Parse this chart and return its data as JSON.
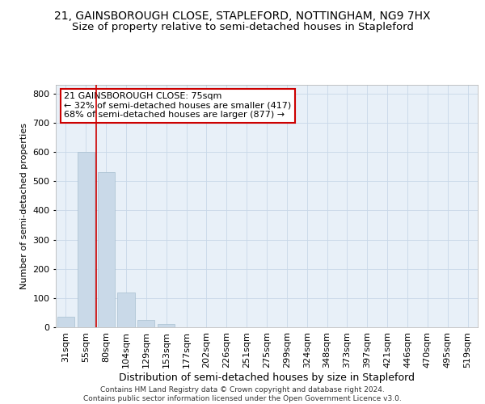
{
  "title": "21, GAINSBOROUGH CLOSE, STAPLEFORD, NOTTINGHAM, NG9 7HX",
  "subtitle": "Size of property relative to semi-detached houses in Stapleford",
  "xlabel": "Distribution of semi-detached houses by size in Stapleford",
  "ylabel": "Number of semi-detached properties",
  "footer_line1": "Contains HM Land Registry data © Crown copyright and database right 2024.",
  "footer_line2": "Contains public sector information licensed under the Open Government Licence v3.0.",
  "categories": [
    "31sqm",
    "55sqm",
    "80sqm",
    "104sqm",
    "129sqm",
    "153sqm",
    "177sqm",
    "202sqm",
    "226sqm",
    "251sqm",
    "275sqm",
    "299sqm",
    "324sqm",
    "348sqm",
    "373sqm",
    "397sqm",
    "421sqm",
    "446sqm",
    "470sqm",
    "495sqm",
    "519sqm"
  ],
  "values": [
    35,
    600,
    530,
    120,
    25,
    10,
    0,
    0,
    0,
    0,
    0,
    0,
    0,
    0,
    0,
    0,
    0,
    0,
    0,
    0,
    0
  ],
  "bar_color": "#c9d9e8",
  "bar_edge_color": "#a8c0d0",
  "vline_x": 1.5,
  "vline_color": "#cc0000",
  "vline_label": "21 GAINSBOROUGH CLOSE: 75sqm",
  "annotation_smaller": "← 32% of semi-detached houses are smaller (417)",
  "annotation_larger": "68% of semi-detached houses are larger (877) →",
  "annotation_box_color": "#ffffff",
  "annotation_box_edge": "#cc0000",
  "ylim": [
    0,
    830
  ],
  "yticks": [
    0,
    100,
    200,
    300,
    400,
    500,
    600,
    700,
    800
  ],
  "grid_color": "#c8d8e8",
  "bg_color": "#e8f0f8",
  "title_fontsize": 10,
  "subtitle_fontsize": 9.5,
  "xlabel_fontsize": 9,
  "ylabel_fontsize": 8,
  "tick_fontsize": 8,
  "annotation_fontsize": 8,
  "footer_fontsize": 6.5
}
